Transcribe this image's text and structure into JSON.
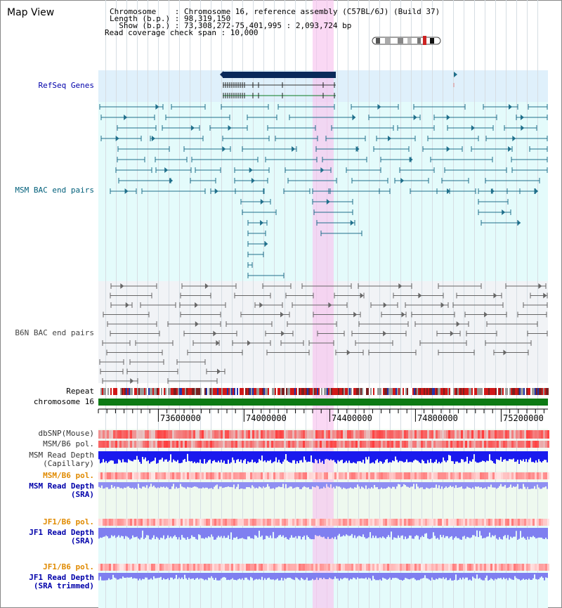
{
  "title": "Map View",
  "header": {
    "chromosome_line": "Chromosome    : Chromosome 16, reference assembly (C57BL/6J) (Build 37)",
    "length_line": "Length (b.p.) : 98,319,150",
    "show_line": "  Show (b.p.) : 73,308,272-75,401,995 : 2,093,724 bp",
    "span_line": "Read coverage check span : 10,000"
  },
  "tracks": {
    "refseq": "RefSeq Genes",
    "msm_bac": "MSM BAC end pairs",
    "b6n_bac": "B6N BAC end pairs",
    "repeat": "Repeat",
    "chromosome": "chromosome 16",
    "dbsnp": "dbSNP(Mouse)",
    "msm_b6_pol": "MSM/B6 pol.",
    "msm_depth_cap_1": "MSM Read Depth",
    "msm_depth_cap_2": "(Capillary)",
    "msm_b6_pol_2": "MSM/B6 pol.",
    "msm_depth_sra_1": "MSM Read Depth",
    "msm_depth_sra_2": "(SRA)",
    "jf1_b6_pol": "JF1/B6 pol.",
    "jf1_depth_sra_1": "JF1 Read Depth",
    "jf1_depth_sra_2": "(SRA)",
    "jf1_b6_pol_2": "JF1/B6 pol.",
    "jf1_depth_trim_1": "JF1 Read Depth",
    "jf1_depth_trim_2": "(SRA trimmed)"
  },
  "axis": {
    "ticks": [
      "73600000",
      "74000000",
      "74400000",
      "74800000",
      "75200000"
    ]
  },
  "colors": {
    "refseq_bg": "#dff0fb",
    "msm_bg": "#e4fbfb",
    "b6n_bg": "#f1f3f6",
    "msm_line": "#1f6f8b",
    "b6n_line": "#666666",
    "chromosome_bar": "#0c7a14",
    "label_blue": "#0000aa",
    "label_teal": "#005f7a",
    "label_orange": "#e08a00",
    "highlight": "#f7c3ee"
  }
}
